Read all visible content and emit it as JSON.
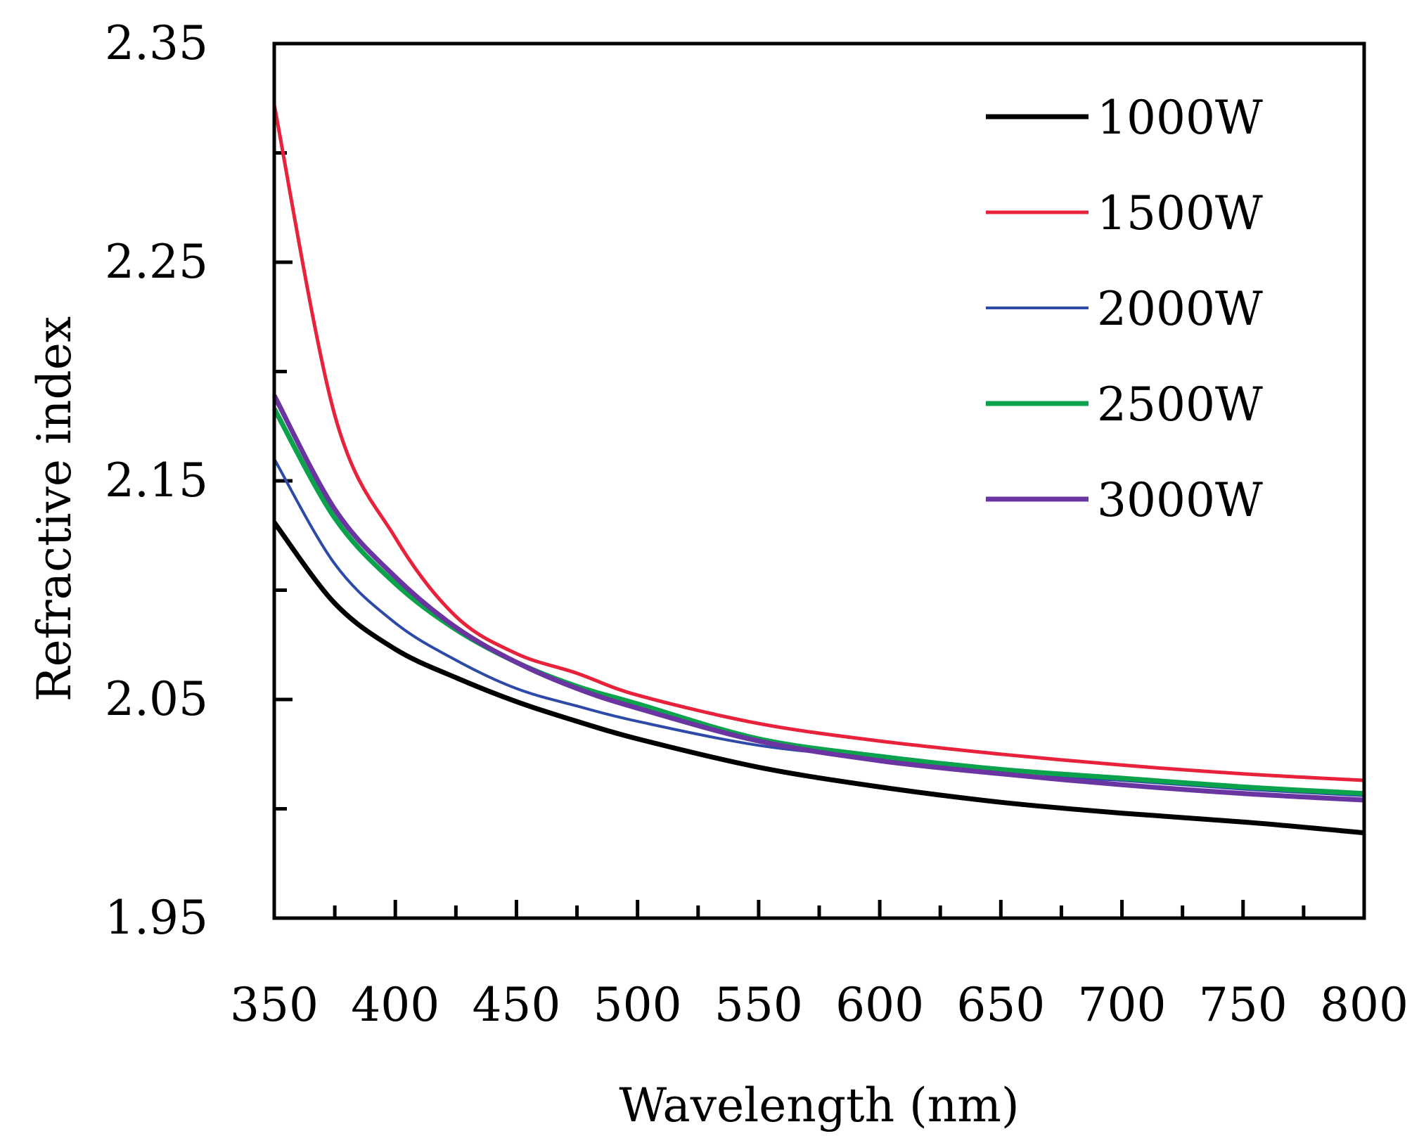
{
  "chart_data": {
    "type": "line",
    "title": "",
    "xlabel": "Wavelength (nm)",
    "ylabel": "Refractive index",
    "xlim": [
      350,
      800
    ],
    "ylim": [
      1.95,
      2.35
    ],
    "xticks": [
      350,
      400,
      450,
      500,
      550,
      600,
      650,
      700,
      750,
      800
    ],
    "xtick_labels": [
      "350",
      "400",
      "450",
      "500",
      "550",
      "600",
      "650",
      "700",
      "750",
      "800"
    ],
    "yticks": [
      1.95,
      2.05,
      2.15,
      2.25,
      2.35
    ],
    "ytick_labels": [
      "1.95",
      "2.05",
      "2.15",
      "2.25",
      "2.35"
    ],
    "grid": false,
    "legend_position": "top-right",
    "x": [
      350,
      375,
      400,
      425,
      450,
      475,
      500,
      550,
      600,
      650,
      700,
      750,
      800
    ],
    "series": [
      {
        "name": "1000W",
        "color": "#000000",
        "values": [
          2.131,
          2.094,
          2.073,
          2.06,
          2.049,
          2.04,
          2.032,
          2.019,
          2.01,
          2.003,
          1.998,
          1.994,
          1.989
        ]
      },
      {
        "name": "1500W",
        "color": "#e8223a",
        "values": [
          2.322,
          2.18,
          2.124,
          2.088,
          2.071,
          2.062,
          2.052,
          2.039,
          2.031,
          2.025,
          2.02,
          2.016,
          2.013
        ]
      },
      {
        "name": "2000W",
        "color": "#2e4aa8",
        "values": [
          2.16,
          2.112,
          2.085,
          2.068,
          2.055,
          2.047,
          2.04,
          2.029,
          2.023,
          2.016,
          2.013,
          2.009,
          2.006
        ]
      },
      {
        "name": "2500W",
        "color": "#0aa24b",
        "values": [
          2.183,
          2.133,
          2.103,
          2.082,
          2.067,
          2.056,
          2.048,
          2.032,
          2.024,
          2.018,
          2.014,
          2.01,
          2.007
        ]
      },
      {
        "name": "3000W",
        "color": "#6a35a1",
        "values": [
          2.189,
          2.137,
          2.106,
          2.083,
          2.067,
          2.055,
          2.046,
          2.031,
          2.022,
          2.016,
          2.011,
          2.007,
          2.004
        ]
      }
    ]
  }
}
